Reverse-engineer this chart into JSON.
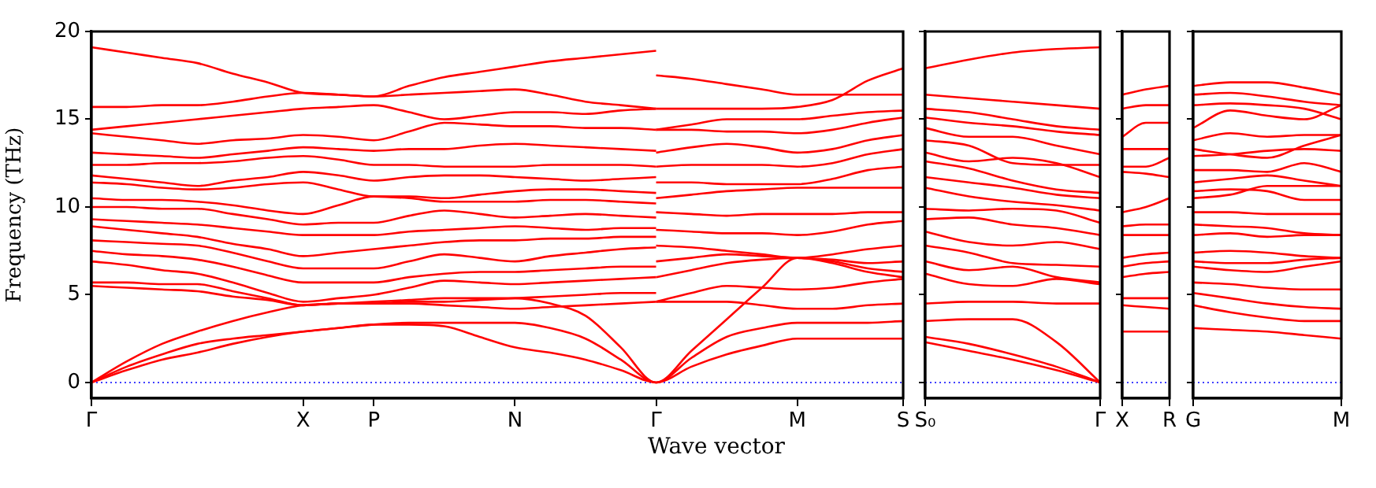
{
  "chart_data": [
    {
      "type": "line",
      "xlabel": "Wave vector",
      "ylabel": "Frequency (THz)",
      "grid": false,
      "ylim": [
        -0.9,
        20
      ],
      "yticks": [
        0,
        5,
        10,
        15,
        20
      ],
      "categories": [
        "Γ",
        null,
        null,
        null,
        null,
        null,
        "X",
        null,
        "P",
        null,
        null,
        null,
        "N",
        null,
        null,
        null,
        "Γ",
        null,
        null,
        null,
        "M",
        null,
        null,
        "S"
      ],
      "ref_lines": [
        {
          "axis": "y",
          "value": 0,
          "color": "#0000ff",
          "line_style": "dotted"
        }
      ],
      "series": [
        {
          "color": "#ff0000",
          "values": [
            0,
            0.7,
            1.3,
            1.7,
            2.2,
            2.6,
            2.9,
            3.1,
            3.3,
            3.3,
            3.2,
            2.6,
            2.0,
            1.7,
            1.3,
            0.7,
            0,
            0.9,
            1.6,
            2.1,
            2.5,
            2.5,
            2.5,
            2.5
          ]
        },
        {
          "color": "#ff0000",
          "values": [
            0,
            0.9,
            1.6,
            2.2,
            2.5,
            2.7,
            2.9,
            3.1,
            3.3,
            3.4,
            3.4,
            3.4,
            3.4,
            3.1,
            2.5,
            1.3,
            0,
            1.4,
            2.6,
            3.1,
            3.4,
            3.4,
            3.4,
            3.5
          ]
        },
        {
          "color": "#ff0000",
          "values": [
            0,
            1.2,
            2.2,
            2.9,
            3.5,
            4.0,
            4.4,
            4.5,
            4.6,
            4.7,
            4.8,
            4.8,
            4.8,
            4.5,
            3.8,
            2.0,
            0,
            1.8,
            3.6,
            5.4,
            7.1,
            6.8,
            6.3,
            6.0
          ]
        },
        {
          "color": "#ff0000",
          "values": [
            19.1,
            18.8,
            18.5,
            18.2,
            17.6,
            17.1,
            16.5,
            16.4,
            16.3,
            16.9,
            17.4,
            17.7,
            18.0,
            18.3,
            18.5,
            18.7,
            18.9,
            null,
            null,
            null,
            null,
            null,
            null,
            null
          ]
        },
        {
          "color": "#ff0000",
          "values": [
            15.7,
            15.7,
            15.8,
            15.8,
            16.0,
            16.3,
            16.5,
            16.4,
            16.3,
            16.4,
            16.5,
            16.6,
            16.7,
            16.4,
            16.0,
            15.8,
            15.6,
            null,
            null,
            null,
            null,
            null,
            null,
            null
          ]
        },
        {
          "color": "#ff0000",
          "values": [
            14.4,
            14.6,
            14.8,
            15.0,
            15.2,
            15.4,
            15.6,
            15.7,
            15.8,
            15.4,
            15.0,
            15.2,
            15.4,
            15.4,
            15.3,
            15.5,
            15.6,
            null,
            null,
            null,
            null,
            null,
            null,
            null
          ]
        },
        {
          "color": "#ff0000",
          "values": [
            14.2,
            14.0,
            13.8,
            13.6,
            13.8,
            13.9,
            14.1,
            14.0,
            13.8,
            14.3,
            14.8,
            14.7,
            14.6,
            14.6,
            14.5,
            14.5,
            14.4,
            null,
            null,
            null,
            null,
            null,
            null,
            null
          ]
        },
        {
          "color": "#ff0000",
          "values": [
            13.1,
            13.0,
            12.9,
            12.8,
            13.0,
            13.2,
            13.4,
            13.3,
            13.2,
            13.3,
            13.3,
            13.5,
            13.6,
            13.5,
            13.4,
            13.3,
            13.2,
            null,
            null,
            null,
            null,
            null,
            null,
            null
          ]
        },
        {
          "color": "#ff0000",
          "values": [
            12.4,
            12.4,
            12.5,
            12.5,
            12.6,
            12.8,
            12.9,
            12.7,
            12.4,
            12.4,
            12.3,
            12.3,
            12.3,
            12.4,
            12.4,
            12.4,
            12.3,
            null,
            null,
            null,
            null,
            null,
            null,
            null
          ]
        },
        {
          "color": "#ff0000",
          "values": [
            11.8,
            11.6,
            11.4,
            11.2,
            11.5,
            11.7,
            12.0,
            11.8,
            11.5,
            11.7,
            11.8,
            11.8,
            11.7,
            11.6,
            11.5,
            11.6,
            11.7,
            null,
            null,
            null,
            null,
            null,
            null,
            null
          ]
        },
        {
          "color": "#ff0000",
          "values": [
            11.4,
            11.3,
            11.1,
            11.0,
            11.1,
            11.3,
            11.4,
            11.0,
            10.6,
            10.6,
            10.5,
            10.7,
            10.9,
            11.0,
            11.0,
            10.9,
            10.8,
            null,
            null,
            null,
            null,
            null,
            null,
            null
          ]
        },
        {
          "color": "#ff0000",
          "values": [
            10.5,
            10.4,
            10.4,
            10.3,
            10.1,
            9.8,
            9.6,
            10.1,
            10.6,
            10.5,
            10.3,
            10.3,
            10.3,
            10.4,
            10.4,
            10.3,
            10.2,
            null,
            null,
            null,
            null,
            null,
            null,
            null
          ]
        },
        {
          "color": "#ff0000",
          "values": [
            10.0,
            10.0,
            9.9,
            9.9,
            9.6,
            9.3,
            9.0,
            9.1,
            9.1,
            9.5,
            9.8,
            9.6,
            9.4,
            9.5,
            9.6,
            9.5,
            9.4,
            null,
            null,
            null,
            null,
            null,
            null,
            null
          ]
        },
        {
          "color": "#ff0000",
          "values": [
            9.3,
            9.2,
            9.1,
            9.0,
            8.8,
            8.6,
            8.4,
            8.4,
            8.4,
            8.6,
            8.7,
            8.8,
            8.9,
            8.8,
            8.7,
            8.8,
            8.8,
            null,
            null,
            null,
            null,
            null,
            null,
            null
          ]
        },
        {
          "color": "#ff0000",
          "values": [
            8.9,
            8.7,
            8.5,
            8.3,
            7.9,
            7.6,
            7.2,
            7.4,
            7.6,
            7.8,
            8.0,
            8.1,
            8.1,
            8.2,
            8.2,
            8.3,
            8.3,
            null,
            null,
            null,
            null,
            null,
            null,
            null
          ]
        },
        {
          "color": "#ff0000",
          "values": [
            8.1,
            8.0,
            7.9,
            7.8,
            7.4,
            6.9,
            6.5,
            6.5,
            6.5,
            6.9,
            7.3,
            7.1,
            6.9,
            7.2,
            7.4,
            7.6,
            7.7,
            null,
            null,
            null,
            null,
            null,
            null,
            null
          ]
        },
        {
          "color": "#ff0000",
          "values": [
            7.5,
            7.3,
            7.2,
            7.0,
            6.6,
            6.1,
            5.7,
            5.7,
            5.7,
            6.0,
            6.2,
            6.3,
            6.3,
            6.4,
            6.5,
            6.6,
            6.6,
            null,
            null,
            null,
            null,
            null,
            null,
            null
          ]
        },
        {
          "color": "#ff0000",
          "values": [
            6.9,
            6.7,
            6.4,
            6.2,
            5.7,
            5.1,
            4.6,
            4.8,
            5.0,
            5.4,
            5.8,
            5.7,
            5.6,
            5.7,
            5.8,
            5.9,
            6.0,
            null,
            null,
            null,
            null,
            null,
            null,
            null
          ]
        },
        {
          "color": "#ff0000",
          "values": [
            5.7,
            5.7,
            5.6,
            5.6,
            5.2,
            4.8,
            4.4,
            4.5,
            4.5,
            4.6,
            4.6,
            4.7,
            4.8,
            4.9,
            5.0,
            5.1,
            5.1,
            null,
            null,
            null,
            null,
            null,
            null,
            null
          ]
        },
        {
          "color": "#ff0000",
          "values": [
            5.5,
            5.4,
            5.3,
            5.2,
            4.9,
            4.7,
            4.4,
            4.5,
            4.5,
            4.5,
            4.4,
            4.3,
            4.2,
            4.3,
            4.4,
            4.5,
            4.6,
            null,
            null,
            null,
            null,
            null,
            null,
            null
          ]
        },
        {
          "color": "#ff0000",
          "values": [
            null,
            null,
            null,
            null,
            null,
            null,
            null,
            null,
            null,
            null,
            null,
            null,
            null,
            null,
            null,
            null,
            17.5,
            17.3,
            17.0,
            16.7,
            16.4,
            16.4,
            16.4,
            16.4
          ]
        },
        {
          "color": "#ff0000",
          "values": [
            null,
            null,
            null,
            null,
            null,
            null,
            null,
            null,
            null,
            null,
            null,
            null,
            null,
            null,
            null,
            null,
            15.6,
            15.6,
            15.6,
            15.6,
            15.7,
            16.1,
            17.2,
            17.9
          ]
        },
        {
          "color": "#ff0000",
          "values": [
            null,
            null,
            null,
            null,
            null,
            null,
            null,
            null,
            null,
            null,
            null,
            null,
            null,
            null,
            null,
            null,
            14.4,
            14.7,
            15.0,
            15.0,
            15.0,
            15.2,
            15.4,
            15.5
          ]
        },
        {
          "color": "#ff0000",
          "values": [
            null,
            null,
            null,
            null,
            null,
            null,
            null,
            null,
            null,
            null,
            null,
            null,
            null,
            null,
            null,
            null,
            14.4,
            14.4,
            14.3,
            14.3,
            14.2,
            14.4,
            14.8,
            15.1
          ]
        },
        {
          "color": "#ff0000",
          "values": [
            null,
            null,
            null,
            null,
            null,
            null,
            null,
            null,
            null,
            null,
            null,
            null,
            null,
            null,
            null,
            null,
            13.1,
            13.4,
            13.6,
            13.4,
            13.1,
            13.3,
            13.8,
            14.1
          ]
        },
        {
          "color": "#ff0000",
          "values": [
            null,
            null,
            null,
            null,
            null,
            null,
            null,
            null,
            null,
            null,
            null,
            null,
            null,
            null,
            null,
            null,
            12.3,
            12.4,
            12.4,
            12.4,
            12.3,
            12.5,
            13.0,
            13.3
          ]
        },
        {
          "color": "#ff0000",
          "values": [
            null,
            null,
            null,
            null,
            null,
            null,
            null,
            null,
            null,
            null,
            null,
            null,
            null,
            null,
            null,
            null,
            11.4,
            11.4,
            11.3,
            11.3,
            11.3,
            11.6,
            12.1,
            12.3
          ]
        },
        {
          "color": "#ff0000",
          "values": [
            null,
            null,
            null,
            null,
            null,
            null,
            null,
            null,
            null,
            null,
            null,
            null,
            null,
            null,
            null,
            null,
            10.5,
            10.7,
            10.9,
            11.0,
            11.1,
            11.1,
            11.1,
            11.1
          ]
        },
        {
          "color": "#ff0000",
          "values": [
            null,
            null,
            null,
            null,
            null,
            null,
            null,
            null,
            null,
            null,
            null,
            null,
            null,
            null,
            null,
            null,
            9.7,
            9.6,
            9.5,
            9.6,
            9.6,
            9.6,
            9.7,
            9.7
          ]
        },
        {
          "color": "#ff0000",
          "values": [
            null,
            null,
            null,
            null,
            null,
            null,
            null,
            null,
            null,
            null,
            null,
            null,
            null,
            null,
            null,
            null,
            8.7,
            8.6,
            8.5,
            8.5,
            8.4,
            8.6,
            9.0,
            9.2
          ]
        },
        {
          "color": "#ff0000",
          "values": [
            null,
            null,
            null,
            null,
            null,
            null,
            null,
            null,
            null,
            null,
            null,
            null,
            null,
            null,
            null,
            null,
            7.8,
            7.7,
            7.5,
            7.3,
            7.1,
            7.3,
            7.6,
            7.8
          ]
        },
        {
          "color": "#ff0000",
          "values": [
            null,
            null,
            null,
            null,
            null,
            null,
            null,
            null,
            null,
            null,
            null,
            null,
            null,
            null,
            null,
            null,
            6.9,
            7.1,
            7.3,
            7.2,
            7.1,
            7.0,
            6.8,
            6.9
          ]
        },
        {
          "color": "#ff0000",
          "values": [
            null,
            null,
            null,
            null,
            null,
            null,
            null,
            null,
            null,
            null,
            null,
            null,
            null,
            null,
            null,
            null,
            6.0,
            6.4,
            6.8,
            7.0,
            7.1,
            6.9,
            6.5,
            6.3
          ]
        },
        {
          "color": "#ff0000",
          "values": [
            null,
            null,
            null,
            null,
            null,
            null,
            null,
            null,
            null,
            null,
            null,
            null,
            null,
            null,
            null,
            null,
            4.6,
            5.1,
            5.5,
            5.4,
            5.3,
            5.4,
            5.7,
            5.9
          ]
        },
        {
          "color": "#ff0000",
          "values": [
            null,
            null,
            null,
            null,
            null,
            null,
            null,
            null,
            null,
            null,
            null,
            null,
            null,
            null,
            null,
            null,
            4.6,
            4.6,
            4.6,
            4.4,
            4.2,
            4.2,
            4.4,
            4.5
          ]
        }
      ]
    },
    {
      "type": "line",
      "grid": false,
      "tick_labels": "x",
      "ylim": [
        -0.9,
        20
      ],
      "yticks": [
        0,
        5,
        10,
        15,
        20
      ],
      "categories": [
        "S₀",
        null,
        null,
        null,
        "Γ"
      ],
      "ref_lines": [
        {
          "axis": "y",
          "value": 0,
          "color": "#0000ff",
          "line_style": "dotted"
        }
      ],
      "series": [
        {
          "color": "#ff0000",
          "values": [
            17.9,
            18.4,
            18.8,
            19.0,
            19.1
          ]
        },
        {
          "color": "#ff0000",
          "values": [
            16.4,
            16.2,
            16.0,
            15.8,
            15.6
          ]
        },
        {
          "color": "#ff0000",
          "values": [
            15.6,
            15.4,
            15.0,
            14.6,
            14.4
          ]
        },
        {
          "color": "#ff0000",
          "values": [
            15.1,
            14.8,
            14.6,
            14.3,
            14.1
          ]
        },
        {
          "color": "#ff0000",
          "values": [
            14.5,
            14.0,
            14.0,
            13.5,
            13.0
          ]
        },
        {
          "color": "#ff0000",
          "values": [
            13.8,
            13.5,
            12.5,
            12.4,
            12.4
          ]
        },
        {
          "color": "#ff0000",
          "values": [
            13.1,
            12.6,
            12.8,
            12.5,
            11.7
          ]
        },
        {
          "color": "#ff0000",
          "values": [
            12.6,
            12.2,
            11.5,
            11.0,
            10.8
          ]
        },
        {
          "color": "#ff0000",
          "values": [
            11.7,
            11.4,
            11.1,
            10.7,
            10.5
          ]
        },
        {
          "color": "#ff0000",
          "values": [
            11.1,
            10.6,
            10.3,
            10.1,
            9.8
          ]
        },
        {
          "color": "#ff0000",
          "values": [
            9.9,
            9.8,
            9.9,
            9.8,
            9.1
          ]
        },
        {
          "color": "#ff0000",
          "values": [
            9.3,
            9.4,
            9.0,
            8.8,
            8.4
          ]
        },
        {
          "color": "#ff0000",
          "values": [
            8.6,
            8.0,
            7.8,
            8.0,
            7.6
          ]
        },
        {
          "color": "#ff0000",
          "values": [
            7.8,
            7.4,
            6.8,
            6.7,
            6.6
          ]
        },
        {
          "color": "#ff0000",
          "values": [
            6.9,
            6.4,
            6.6,
            6.0,
            5.7
          ]
        },
        {
          "color": "#ff0000",
          "values": [
            6.2,
            5.6,
            5.5,
            5.9,
            5.6
          ]
        },
        {
          "color": "#ff0000",
          "values": [
            4.5,
            4.6,
            4.6,
            4.5,
            4.5
          ]
        },
        {
          "color": "#ff0000",
          "values": [
            3.5,
            3.6,
            3.6,
            2.3,
            0
          ]
        },
        {
          "color": "#ff0000",
          "values": [
            2.6,
            2.2,
            1.6,
            0.9,
            0
          ]
        },
        {
          "color": "#ff0000",
          "values": [
            2.3,
            1.8,
            1.3,
            0.7,
            0
          ]
        }
      ]
    },
    {
      "type": "line",
      "grid": false,
      "tick_labels": "x",
      "ylim": [
        -0.9,
        20
      ],
      "yticks": [
        0,
        5,
        10,
        15,
        20
      ],
      "categories": [
        "X",
        null,
        "R"
      ],
      "ref_lines": [
        {
          "axis": "y",
          "value": 0,
          "color": "#0000ff",
          "line_style": "dotted"
        }
      ],
      "series": [
        {
          "color": "#ff0000",
          "values": [
            16.4,
            16.7,
            16.9
          ]
        },
        {
          "color": "#ff0000",
          "values": [
            15.6,
            15.8,
            15.8
          ]
        },
        {
          "color": "#ff0000",
          "values": [
            14.0,
            14.8,
            14.8
          ]
        },
        {
          "color": "#ff0000",
          "values": [
            13.3,
            13.3,
            13.3
          ]
        },
        {
          "color": "#ff0000",
          "values": [
            12.3,
            12.3,
            12.8
          ]
        },
        {
          "color": "#ff0000",
          "values": [
            12.0,
            11.9,
            11.7
          ]
        },
        {
          "color": "#ff0000",
          "values": [
            9.7,
            10.0,
            10.5
          ]
        },
        {
          "color": "#ff0000",
          "values": [
            8.9,
            9.0,
            9.0
          ]
        },
        {
          "color": "#ff0000",
          "values": [
            8.4,
            8.4,
            8.4
          ]
        },
        {
          "color": "#ff0000",
          "values": [
            7.1,
            7.3,
            7.4
          ]
        },
        {
          "color": "#ff0000",
          "values": [
            6.6,
            6.8,
            6.9
          ]
        },
        {
          "color": "#ff0000",
          "values": [
            6.0,
            6.2,
            6.3
          ]
        },
        {
          "color": "#ff0000",
          "values": [
            4.8,
            4.8,
            4.8
          ]
        },
        {
          "color": "#ff0000",
          "values": [
            4.4,
            4.3,
            4.2
          ]
        },
        {
          "color": "#ff0000",
          "values": [
            2.9,
            2.9,
            2.9
          ]
        }
      ]
    },
    {
      "type": "line",
      "grid": false,
      "tick_labels": "x",
      "ylim": [
        -0.9,
        20
      ],
      "yticks": [
        0,
        5,
        10,
        15,
        20
      ],
      "categories": [
        "G",
        null,
        null,
        null,
        "M"
      ],
      "ref_lines": [
        {
          "axis": "y",
          "value": 0,
          "color": "#0000ff",
          "line_style": "dotted"
        }
      ],
      "series": [
        {
          "color": "#ff0000",
          "values": [
            16.9,
            17.1,
            17.1,
            16.8,
            16.4
          ]
        },
        {
          "color": "#ff0000",
          "values": [
            16.4,
            16.5,
            16.3,
            16.0,
            15.8
          ]
        },
        {
          "color": "#ff0000",
          "values": [
            15.8,
            15.9,
            15.8,
            15.6,
            15.0
          ]
        },
        {
          "color": "#ff0000",
          "values": [
            14.5,
            15.5,
            15.2,
            15.0,
            15.8
          ]
        },
        {
          "color": "#ff0000",
          "values": [
            13.8,
            14.2,
            14.0,
            14.1,
            14.1
          ]
        },
        {
          "color": "#ff0000",
          "values": [
            13.3,
            13.0,
            12.8,
            13.5,
            14.1
          ]
        },
        {
          "color": "#ff0000",
          "values": [
            12.9,
            13.0,
            13.2,
            13.3,
            13.2
          ]
        },
        {
          "color": "#ff0000",
          "values": [
            12.1,
            12.1,
            12.0,
            12.5,
            12.0
          ]
        },
        {
          "color": "#ff0000",
          "values": [
            11.4,
            11.6,
            11.8,
            11.5,
            11.2
          ]
        },
        {
          "color": "#ff0000",
          "values": [
            10.9,
            11.0,
            10.9,
            10.4,
            10.4
          ]
        },
        {
          "color": "#ff0000",
          "values": [
            10.5,
            10.7,
            11.2,
            11.2,
            11.2
          ]
        },
        {
          "color": "#ff0000",
          "values": [
            9.7,
            9.7,
            9.6,
            9.6,
            9.6
          ]
        },
        {
          "color": "#ff0000",
          "values": [
            9.0,
            8.9,
            8.8,
            8.5,
            8.4
          ]
        },
        {
          "color": "#ff0000",
          "values": [
            8.4,
            8.5,
            8.3,
            8.4,
            8.4
          ]
        },
        {
          "color": "#ff0000",
          "values": [
            7.4,
            7.5,
            7.4,
            7.2,
            7.1
          ]
        },
        {
          "color": "#ff0000",
          "values": [
            6.9,
            6.8,
            6.8,
            7.0,
            7.1
          ]
        },
        {
          "color": "#ff0000",
          "values": [
            6.6,
            6.4,
            6.3,
            6.6,
            6.9
          ]
        },
        {
          "color": "#ff0000",
          "values": [
            5.7,
            5.6,
            5.4,
            5.3,
            5.3
          ]
        },
        {
          "color": "#ff0000",
          "values": [
            5.1,
            4.8,
            4.5,
            4.3,
            4.2
          ]
        },
        {
          "color": "#ff0000",
          "values": [
            4.4,
            4.0,
            3.7,
            3.5,
            3.5
          ]
        },
        {
          "color": "#ff0000",
          "values": [
            3.1,
            3.0,
            2.9,
            2.7,
            2.5
          ]
        }
      ]
    }
  ]
}
